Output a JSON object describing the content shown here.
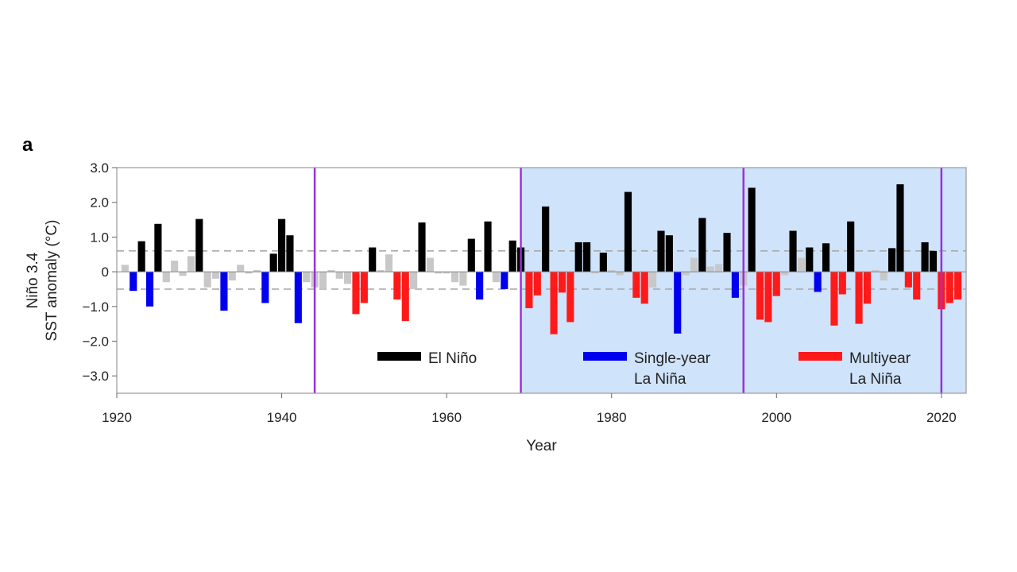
{
  "panel_label": "a",
  "colors": {
    "el_nino": "#000000",
    "single_year": "#0000ee",
    "multiyear": "#ff1a1a",
    "neutral": "#c8c8c8",
    "shade": "#cfe3fb",
    "divider": "#9b30d9",
    "threshold": "#aaaaaa",
    "frame": "#999999"
  },
  "chart_data": {
    "type": "bar",
    "xlabel": "Year",
    "ylabel_lines": [
      "Niño 3.4",
      "SST anomaly (°C)"
    ],
    "xlim": [
      1920,
      2023
    ],
    "ylim": [
      -3.5,
      3.0
    ],
    "x_ticks": [
      1920,
      1940,
      1960,
      1980,
      2000,
      2020
    ],
    "y_ticks": [
      {
        "value": 3.0,
        "label": "3.0"
      },
      {
        "value": 2.0,
        "label": "2.0"
      },
      {
        "value": 1.0,
        "label": "1.0"
      },
      {
        "value": 0,
        "label": "0"
      },
      {
        "value": -1.0,
        "label": "−1.0"
      },
      {
        "value": -2.0,
        "label": "−2.0"
      },
      {
        "value": -3.0,
        "label": "−3.0"
      }
    ],
    "thresholds": [
      0.6,
      -0.5
    ],
    "dividers": [
      1944,
      1969,
      1996,
      2020
    ],
    "shaded_ranges": [
      [
        1969,
        2023
      ]
    ],
    "categories": [
      "neutral",
      "el_nino",
      "single_year",
      "multiyear"
    ],
    "legend": [
      {
        "key": "el_nino",
        "lines": [
          "El Niño"
        ]
      },
      {
        "key": "single_year",
        "lines": [
          "Single-year",
          "La Niña"
        ]
      },
      {
        "key": "multiyear",
        "lines": [
          "Multiyear",
          "La Niña"
        ]
      }
    ],
    "bars": [
      {
        "year": 1921,
        "value": 0.2,
        "type": "neutral"
      },
      {
        "year": 1922,
        "value": -0.55,
        "type": "single_year"
      },
      {
        "year": 1923,
        "value": 0.88,
        "type": "el_nino"
      },
      {
        "year": 1924,
        "value": -1.0,
        "type": "single_year"
      },
      {
        "year": 1925,
        "value": 1.38,
        "type": "el_nino"
      },
      {
        "year": 1926,
        "value": -0.3,
        "type": "neutral"
      },
      {
        "year": 1927,
        "value": 0.32,
        "type": "neutral"
      },
      {
        "year": 1928,
        "value": -0.12,
        "type": "neutral"
      },
      {
        "year": 1929,
        "value": 0.45,
        "type": "neutral"
      },
      {
        "year": 1930,
        "value": 1.52,
        "type": "el_nino"
      },
      {
        "year": 1931,
        "value": -0.45,
        "type": "neutral"
      },
      {
        "year": 1932,
        "value": -0.2,
        "type": "neutral"
      },
      {
        "year": 1933,
        "value": -1.12,
        "type": "single_year"
      },
      {
        "year": 1934,
        "value": -0.25,
        "type": "neutral"
      },
      {
        "year": 1935,
        "value": 0.2,
        "type": "neutral"
      },
      {
        "year": 1936,
        "value": -0.05,
        "type": "neutral"
      },
      {
        "year": 1937,
        "value": 0.05,
        "type": "neutral"
      },
      {
        "year": 1938,
        "value": -0.9,
        "type": "single_year"
      },
      {
        "year": 1939,
        "value": 0.52,
        "type": "el_nino"
      },
      {
        "year": 1940,
        "value": 1.52,
        "type": "el_nino"
      },
      {
        "year": 1941,
        "value": 1.05,
        "type": "el_nino"
      },
      {
        "year": 1942,
        "value": -1.48,
        "type": "single_year"
      },
      {
        "year": 1943,
        "value": -0.3,
        "type": "neutral"
      },
      {
        "year": 1944,
        "value": -0.45,
        "type": "neutral"
      },
      {
        "year": 1945,
        "value": -0.5,
        "type": "neutral"
      },
      {
        "year": 1946,
        "value": 0.05,
        "type": "neutral"
      },
      {
        "year": 1947,
        "value": -0.2,
        "type": "neutral"
      },
      {
        "year": 1948,
        "value": -0.35,
        "type": "neutral"
      },
      {
        "year": 1949,
        "value": -1.22,
        "type": "multiyear"
      },
      {
        "year": 1950,
        "value": -0.9,
        "type": "multiyear"
      },
      {
        "year": 1951,
        "value": 0.7,
        "type": "el_nino"
      },
      {
        "year": 1952,
        "value": 0.05,
        "type": "neutral"
      },
      {
        "year": 1953,
        "value": 0.5,
        "type": "neutral"
      },
      {
        "year": 1954,
        "value": -0.8,
        "type": "multiyear"
      },
      {
        "year": 1955,
        "value": -1.42,
        "type": "multiyear"
      },
      {
        "year": 1956,
        "value": -0.5,
        "type": "neutral"
      },
      {
        "year": 1957,
        "value": 1.42,
        "type": "el_nino"
      },
      {
        "year": 1958,
        "value": 0.4,
        "type": "neutral"
      },
      {
        "year": 1959,
        "value": -0.05,
        "type": "neutral"
      },
      {
        "year": 1960,
        "value": -0.05,
        "type": "neutral"
      },
      {
        "year": 1961,
        "value": -0.3,
        "type": "neutral"
      },
      {
        "year": 1962,
        "value": -0.4,
        "type": "neutral"
      },
      {
        "year": 1963,
        "value": 0.95,
        "type": "el_nino"
      },
      {
        "year": 1964,
        "value": -0.8,
        "type": "single_year"
      },
      {
        "year": 1965,
        "value": 1.45,
        "type": "el_nino"
      },
      {
        "year": 1966,
        "value": -0.3,
        "type": "neutral"
      },
      {
        "year": 1967,
        "value": -0.5,
        "type": "single_year"
      },
      {
        "year": 1968,
        "value": 0.9,
        "type": "el_nino"
      },
      {
        "year": 1969,
        "value": 0.7,
        "type": "el_nino"
      },
      {
        "year": 1970,
        "value": -1.05,
        "type": "multiyear"
      },
      {
        "year": 1971,
        "value": -0.68,
        "type": "multiyear"
      },
      {
        "year": 1972,
        "value": 1.88,
        "type": "el_nino"
      },
      {
        "year": 1973,
        "value": -1.8,
        "type": "multiyear"
      },
      {
        "year": 1974,
        "value": -0.6,
        "type": "multiyear"
      },
      {
        "year": 1975,
        "value": -1.45,
        "type": "multiyear"
      },
      {
        "year": 1976,
        "value": 0.85,
        "type": "el_nino"
      },
      {
        "year": 1977,
        "value": 0.85,
        "type": "el_nino"
      },
      {
        "year": 1978,
        "value": -0.05,
        "type": "neutral"
      },
      {
        "year": 1979,
        "value": 0.55,
        "type": "el_nino"
      },
      {
        "year": 1980,
        "value": 0.05,
        "type": "neutral"
      },
      {
        "year": 1981,
        "value": -0.1,
        "type": "neutral"
      },
      {
        "year": 1982,
        "value": 2.3,
        "type": "el_nino"
      },
      {
        "year": 1983,
        "value": -0.75,
        "type": "multiyear"
      },
      {
        "year": 1984,
        "value": -0.92,
        "type": "multiyear"
      },
      {
        "year": 1985,
        "value": -0.45,
        "type": "neutral"
      },
      {
        "year": 1986,
        "value": 1.18,
        "type": "el_nino"
      },
      {
        "year": 1987,
        "value": 1.05,
        "type": "el_nino"
      },
      {
        "year": 1988,
        "value": -1.78,
        "type": "single_year"
      },
      {
        "year": 1989,
        "value": -0.1,
        "type": "neutral"
      },
      {
        "year": 1990,
        "value": 0.4,
        "type": "neutral"
      },
      {
        "year": 1991,
        "value": 1.55,
        "type": "el_nino"
      },
      {
        "year": 1992,
        "value": 0.15,
        "type": "neutral"
      },
      {
        "year": 1993,
        "value": 0.22,
        "type": "neutral"
      },
      {
        "year": 1994,
        "value": 1.12,
        "type": "el_nino"
      },
      {
        "year": 1995,
        "value": -0.75,
        "type": "single_year"
      },
      {
        "year": 1996,
        "value": -0.4,
        "type": "neutral"
      },
      {
        "year": 1997,
        "value": 2.42,
        "type": "el_nino"
      },
      {
        "year": 1998,
        "value": -1.38,
        "type": "multiyear"
      },
      {
        "year": 1999,
        "value": -1.45,
        "type": "multiyear"
      },
      {
        "year": 2000,
        "value": -0.7,
        "type": "multiyear"
      },
      {
        "year": 2001,
        "value": -0.1,
        "type": "neutral"
      },
      {
        "year": 2002,
        "value": 1.18,
        "type": "el_nino"
      },
      {
        "year": 2003,
        "value": 0.4,
        "type": "neutral"
      },
      {
        "year": 2004,
        "value": 0.7,
        "type": "el_nino"
      },
      {
        "year": 2005,
        "value": -0.58,
        "type": "single_year"
      },
      {
        "year": 2006,
        "value": 0.82,
        "type": "el_nino"
      },
      {
        "year": 2007,
        "value": -1.55,
        "type": "multiyear"
      },
      {
        "year": 2008,
        "value": -0.65,
        "type": "multiyear"
      },
      {
        "year": 2009,
        "value": 1.45,
        "type": "el_nino"
      },
      {
        "year": 2010,
        "value": -1.5,
        "type": "multiyear"
      },
      {
        "year": 2011,
        "value": -0.92,
        "type": "multiyear"
      },
      {
        "year": 2012,
        "value": 0.05,
        "type": "neutral"
      },
      {
        "year": 2013,
        "value": -0.25,
        "type": "neutral"
      },
      {
        "year": 2014,
        "value": 0.68,
        "type": "el_nino"
      },
      {
        "year": 2015,
        "value": 2.52,
        "type": "el_nino"
      },
      {
        "year": 2016,
        "value": -0.45,
        "type": "multiyear"
      },
      {
        "year": 2017,
        "value": -0.8,
        "type": "multiyear"
      },
      {
        "year": 2018,
        "value": 0.85,
        "type": "el_nino"
      },
      {
        "year": 2019,
        "value": 0.6,
        "type": "el_nino"
      },
      {
        "year": 2020,
        "value": -1.08,
        "type": "multiyear"
      },
      {
        "year": 2021,
        "value": -0.9,
        "type": "multiyear"
      },
      {
        "year": 2022,
        "value": -0.8,
        "type": "multiyear"
      }
    ]
  }
}
